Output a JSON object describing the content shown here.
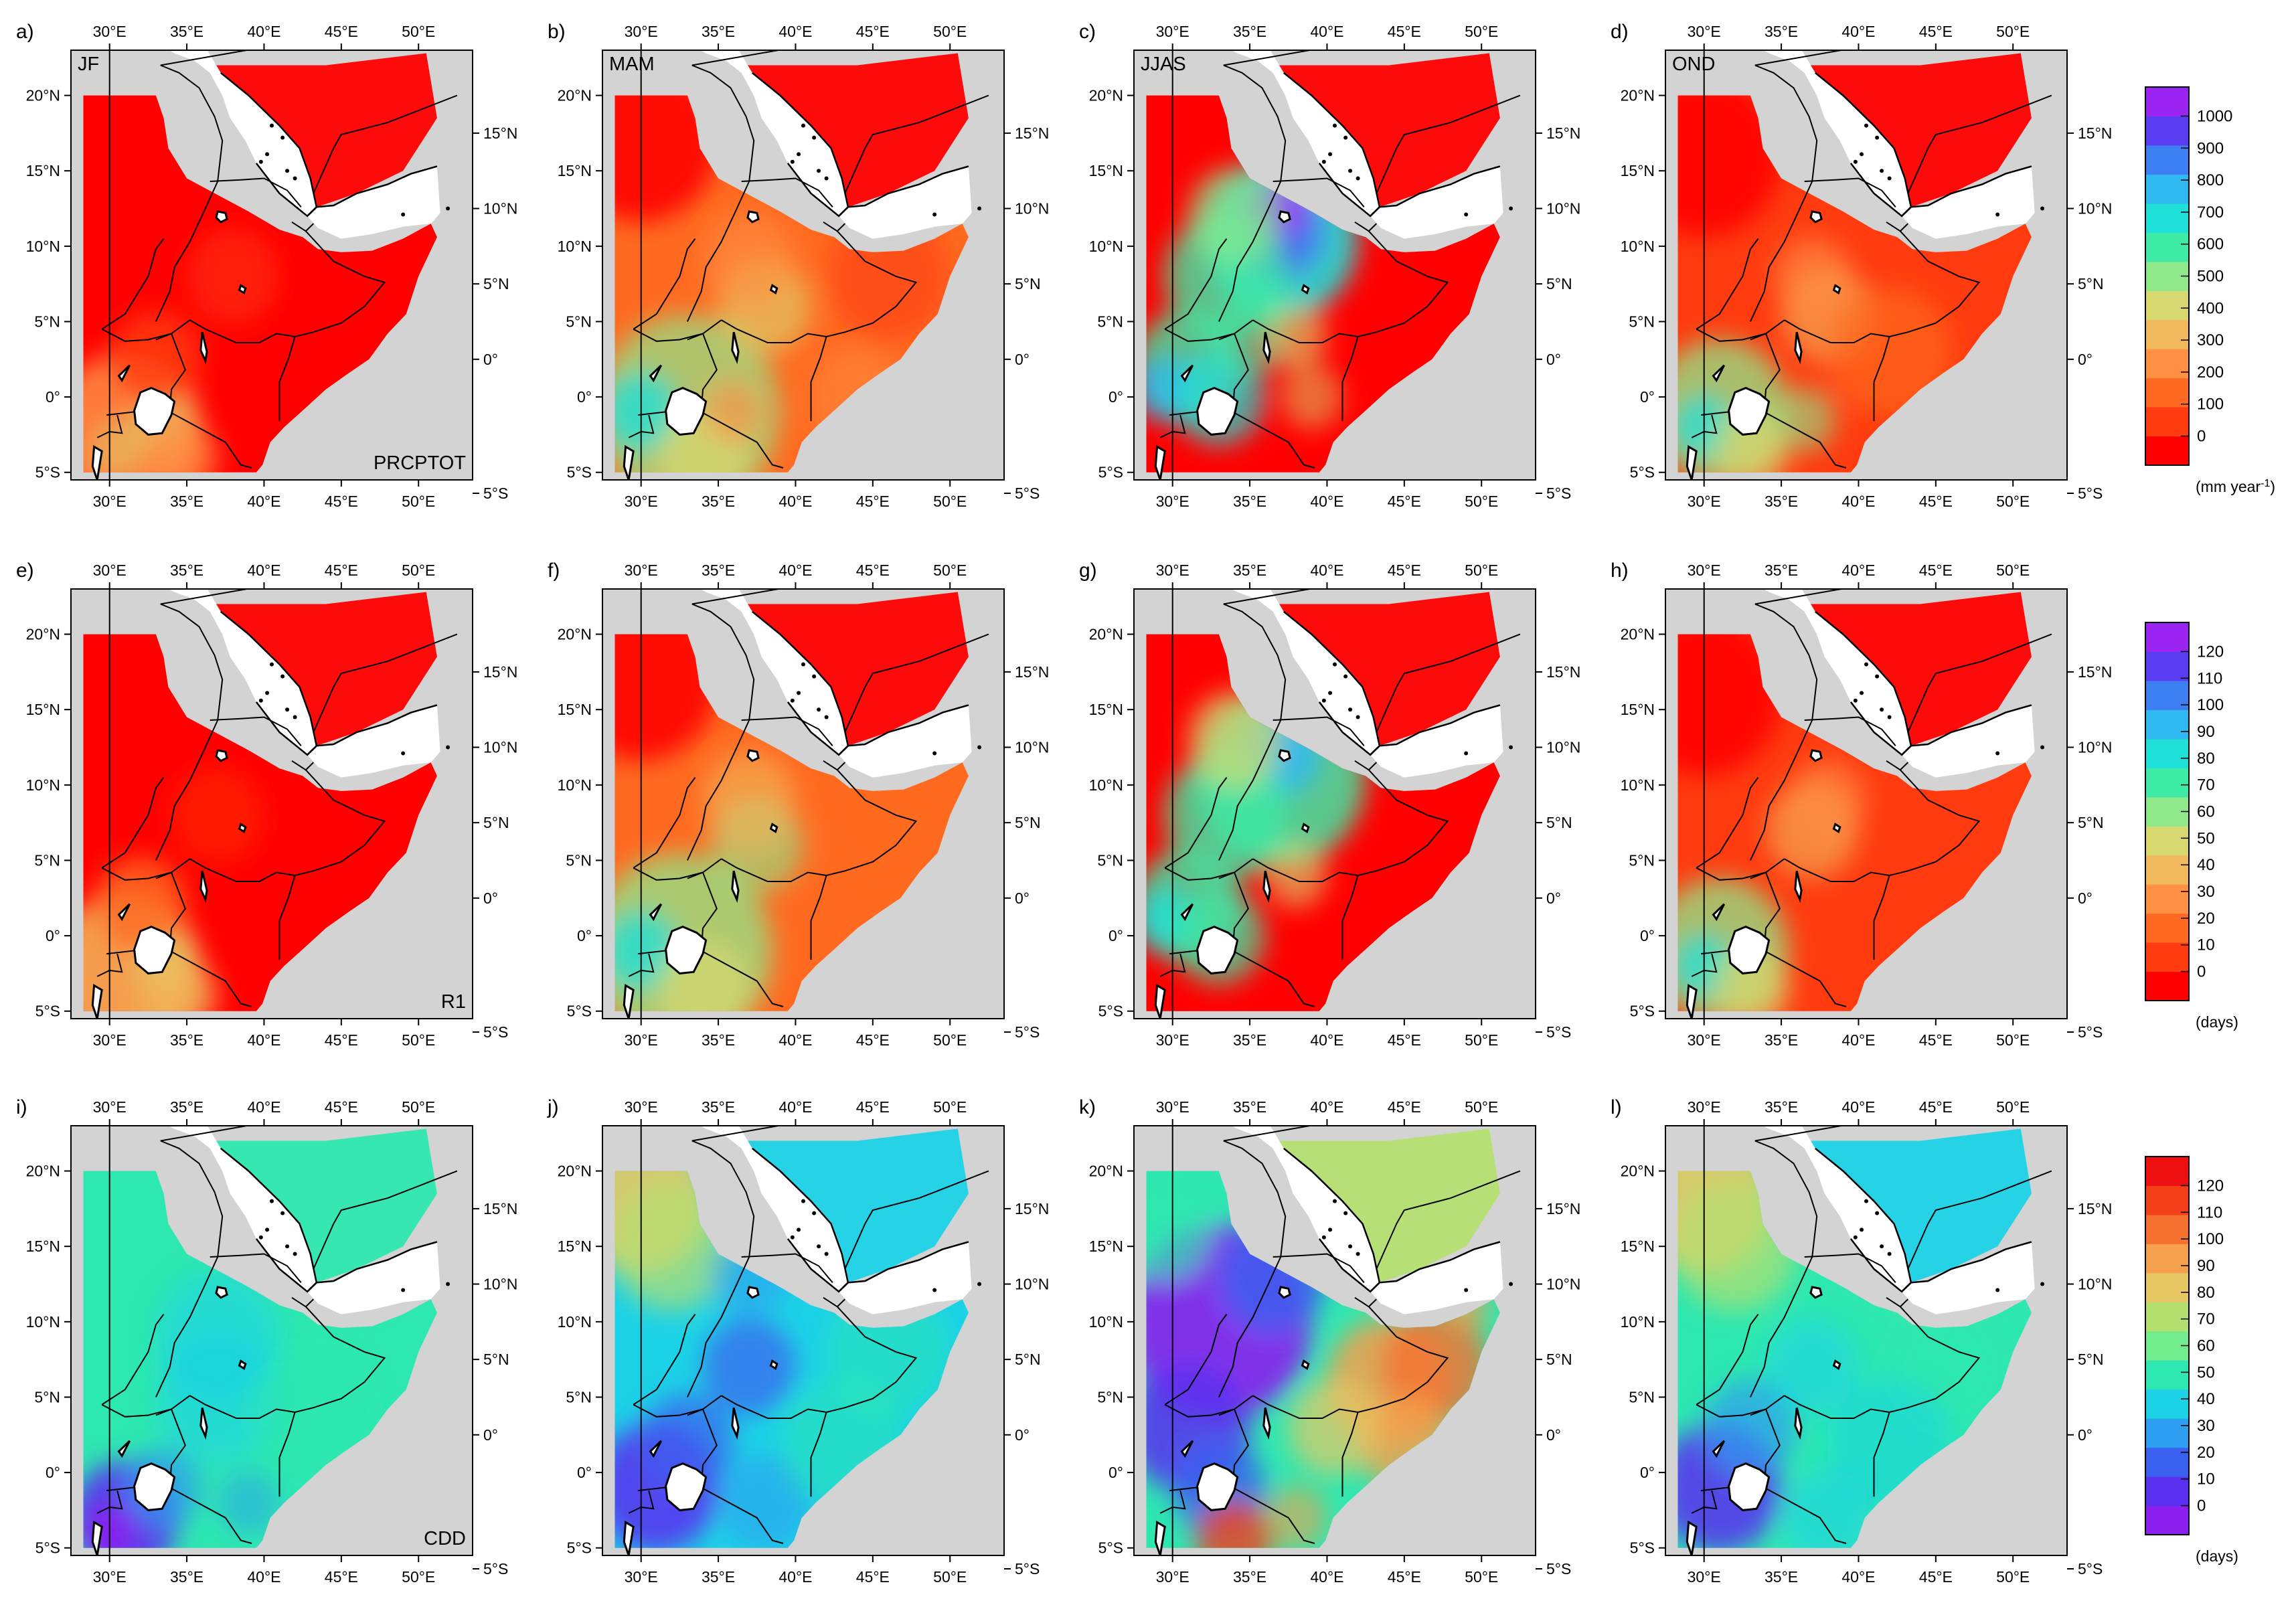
{
  "panels": [
    {
      "letter": "a)",
      "season": "JF",
      "index_label": "PRCPTOT",
      "row": 0,
      "col": 0
    },
    {
      "letter": "b)",
      "season": "MAM",
      "index_label": "",
      "row": 0,
      "col": 1
    },
    {
      "letter": "c)",
      "season": "JJAS",
      "index_label": "",
      "row": 0,
      "col": 2
    },
    {
      "letter": "d)",
      "season": "OND",
      "index_label": "",
      "row": 0,
      "col": 3
    },
    {
      "letter": "e)",
      "season": "",
      "index_label": "R1",
      "row": 1,
      "col": 0
    },
    {
      "letter": "f)",
      "season": "",
      "index_label": "",
      "row": 1,
      "col": 1
    },
    {
      "letter": "g)",
      "season": "",
      "index_label": "",
      "row": 1,
      "col": 2
    },
    {
      "letter": "h)",
      "season": "",
      "index_label": "",
      "row": 1,
      "col": 3
    },
    {
      "letter": "i)",
      "season": "",
      "index_label": "CDD",
      "row": 2,
      "col": 0
    },
    {
      "letter": "j)",
      "season": "",
      "index_label": "",
      "row": 2,
      "col": 1
    },
    {
      "letter": "k)",
      "season": "",
      "index_label": "",
      "row": 2,
      "col": 2
    },
    {
      "letter": "l)",
      "season": "",
      "index_label": "",
      "row": 2,
      "col": 3
    }
  ],
  "axes": {
    "lon_ticks_top": [
      "30°E",
      "35°E",
      "40°E",
      "45°E",
      "50°E"
    ],
    "lon_ticks_bottom": [
      "30°E",
      "35°E",
      "40°E",
      "45°E",
      "50°E"
    ],
    "lat_ticks_left": [
      "20°N",
      "15°N",
      "10°N",
      "5°N",
      "0°",
      "5°S"
    ],
    "lat_ticks_right": [
      "15°N",
      "10°N",
      "5°N",
      "0°",
      "5°S"
    ]
  },
  "colorbars": [
    {
      "row": 0,
      "palette": "rain",
      "labels": [
        "1000",
        "900",
        "800",
        "700",
        "600",
        "500",
        "400",
        "300",
        "200",
        "100",
        "0"
      ],
      "unit": "(mm year",
      "unit_sup": "-1",
      "unit_close": ")"
    },
    {
      "row": 1,
      "palette": "rain",
      "labels": [
        "120",
        "110",
        "100",
        "90",
        "80",
        "70",
        "60",
        "50",
        "40",
        "30",
        "20",
        "10",
        "0"
      ],
      "unit": "(days)",
      "unit_sup": "",
      "unit_close": ""
    },
    {
      "row": 2,
      "palette": "dry",
      "labels": [
        "120",
        "110",
        "100",
        "90",
        "80",
        "70",
        "60",
        "50",
        "40",
        "30",
        "20",
        "10",
        "0"
      ],
      "unit": "(days)",
      "unit_sup": "",
      "unit_close": ""
    }
  ],
  "colors": {
    "land_gray": "#d3d3d3",
    "sea": "#ffffff",
    "rain_scale": [
      "#ff0000",
      "#ff3b0f",
      "#ff6a20",
      "#ff9044",
      "#f2b85c",
      "#d8d870",
      "#8fe88a",
      "#3deaa6",
      "#1fe0d8",
      "#30b8f0",
      "#3d7ef2",
      "#5a3cf0",
      "#9a24f2"
    ],
    "dry_scale": [
      "#8a1ff0",
      "#5a30f0",
      "#3a60f0",
      "#2d9ef0",
      "#1cd2e6",
      "#2de8b0",
      "#70ec8c",
      "#b4e070",
      "#e8c864",
      "#f4a04c",
      "#f67030",
      "#f44018",
      "#ee1010"
    ]
  }
}
